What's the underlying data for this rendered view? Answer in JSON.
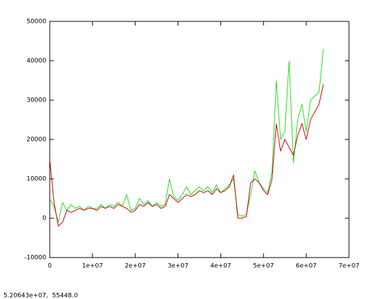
{
  "chart_data": {
    "type": "line",
    "xlim": [
      0,
      70000000
    ],
    "ylim": [
      -10000,
      50000
    ],
    "xticks": [
      0,
      {
        "value": 10000000,
        "label": "1e+07"
      },
      {
        "value": 20000000,
        "label": "2e+07"
      },
      {
        "value": 30000000,
        "label": "3e+07"
      },
      {
        "value": 40000000,
        "label": "4e+07"
      },
      {
        "value": 50000000,
        "label": "5e+07"
      },
      {
        "value": 60000000,
        "label": "6e+07"
      },
      {
        "value": 70000000,
        "label": "7e+07"
      }
    ],
    "yticks": [
      -10000,
      0,
      10000,
      20000,
      30000,
      40000,
      50000
    ],
    "x": [
      0,
      1000000,
      2000000,
      3000000,
      4000000,
      5000000,
      6000000,
      7000000,
      8000000,
      9000000,
      10000000,
      11000000,
      12000000,
      13000000,
      14000000,
      15000000,
      16000000,
      17000000,
      18000000,
      19000000,
      20000000,
      21000000,
      22000000,
      23000000,
      24000000,
      25000000,
      26000000,
      27000000,
      28000000,
      29000000,
      30000000,
      31000000,
      32000000,
      33000000,
      34000000,
      35000000,
      36000000,
      37000000,
      38000000,
      39000000,
      40000000,
      41000000,
      42000000,
      43000000,
      44000000,
      45000000,
      46000000,
      47000000,
      48000000,
      49000000,
      50000000,
      51000000,
      52000000,
      53000000,
      54000000,
      55000000,
      56000000,
      57000000,
      58000000,
      59000000,
      60000000,
      61000000,
      62000000,
      63000000,
      64000000
    ],
    "series": [
      {
        "color": "#22dd22",
        "values": [
          5000,
          3000,
          -1000,
          4000,
          2000,
          3500,
          2500,
          3000,
          2000,
          3000,
          2500,
          2500,
          3500,
          2500,
          3500,
          3000,
          4000,
          3000,
          6000,
          2000,
          2500,
          5000,
          3500,
          4500,
          3000,
          4000,
          3000,
          3500,
          10000,
          5500,
          4500,
          6000,
          8000,
          6000,
          7000,
          8000,
          7000,
          8000,
          6500,
          8500,
          6500,
          7500,
          8500,
          10000,
          1000,
          500,
          1000,
          6000,
          12000,
          9000,
          7500,
          6500,
          12000,
          35000,
          20000,
          22000,
          40000,
          14000,
          25000,
          29000,
          22000,
          30000,
          31000,
          32000,
          43000
        ]
      },
      {
        "color": "#cc0000",
        "values": [
          15000,
          4000,
          -2000,
          -1000,
          2000,
          1500,
          2000,
          2500,
          2000,
          2500,
          2500,
          2000,
          3000,
          2500,
          3000,
          2500,
          3500,
          3000,
          2500,
          1500,
          2000,
          3500,
          3000,
          4000,
          3000,
          3500,
          2500,
          3000,
          6000,
          5000,
          4000,
          5000,
          6000,
          5500,
          6000,
          7000,
          6500,
          7000,
          6000,
          7500,
          6500,
          7000,
          8000,
          11000,
          0,
          0,
          500,
          9000,
          10000,
          9000,
          7000,
          6000,
          10000,
          24000,
          17000,
          20000,
          18000,
          16000,
          21000,
          24000,
          20000,
          25000,
          27000,
          29000,
          34000
        ]
      }
    ]
  },
  "status": "5.20643e+07,  55448.0"
}
